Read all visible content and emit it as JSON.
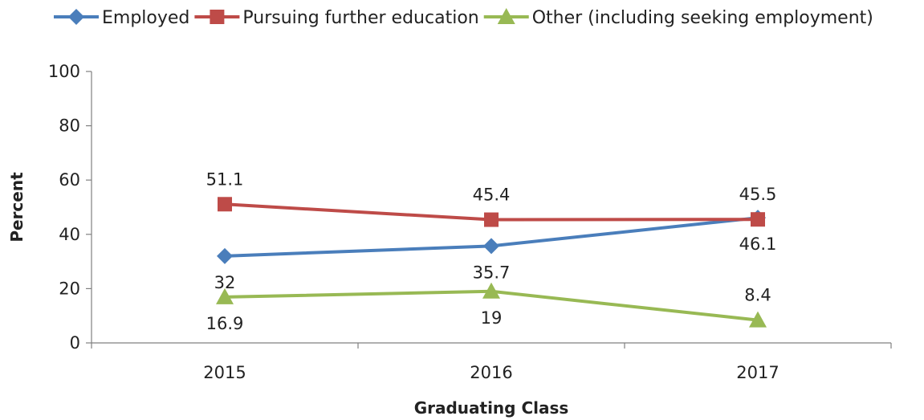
{
  "chart_data": {
    "type": "line",
    "title": "",
    "xlabel": "Graduating Class",
    "ylabel": "Percent",
    "categories": [
      "2015",
      "2016",
      "2017"
    ],
    "ylim": [
      0,
      100
    ],
    "yticks": [
      0,
      20,
      40,
      60,
      80,
      100
    ],
    "grid": false,
    "legend_position": "top",
    "series": [
      {
        "name": "Employed",
        "values": [
          32,
          35.7,
          46.1
        ],
        "color": "#4A7EBB",
        "marker": "diamond",
        "labels": [
          "32",
          "35.7",
          "46.1"
        ],
        "label_placement": [
          "below",
          "below",
          "below"
        ]
      },
      {
        "name": "Pursuing further education",
        "values": [
          51.1,
          45.4,
          45.5
        ],
        "color": "#BE4B48",
        "marker": "square",
        "labels": [
          "51.1",
          "45.4",
          "45.5"
        ],
        "label_placement": [
          "above",
          "above",
          "above"
        ]
      },
      {
        "name": "Other (including seeking employment)",
        "values": [
          16.9,
          19,
          8.4
        ],
        "color": "#98B954",
        "marker": "triangle",
        "labels": [
          "16.9",
          "19",
          "8.4"
        ],
        "label_placement": [
          "below",
          "below",
          "above"
        ]
      }
    ]
  }
}
